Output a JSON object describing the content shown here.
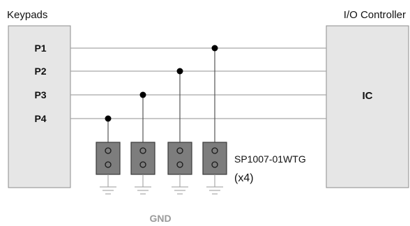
{
  "blocks": {
    "left_title": "Keypads",
    "right_title": "I/O Controller",
    "controller_label": "IC"
  },
  "pins": [
    "P1",
    "P2",
    "P3",
    "P4"
  ],
  "device": {
    "part_number": "SP1007-01WTG",
    "quantity": "(x4)"
  },
  "ground_label": "GND",
  "colors": {
    "block_fill": "#e6e6e6",
    "block_stroke": "#8c8c8c",
    "wire": "#a6a6a6",
    "device_fill": "#7d7d7d",
    "device_stroke": "#3a3a3a",
    "ground_text": "#9a9a9a",
    "node": "#000000"
  }
}
